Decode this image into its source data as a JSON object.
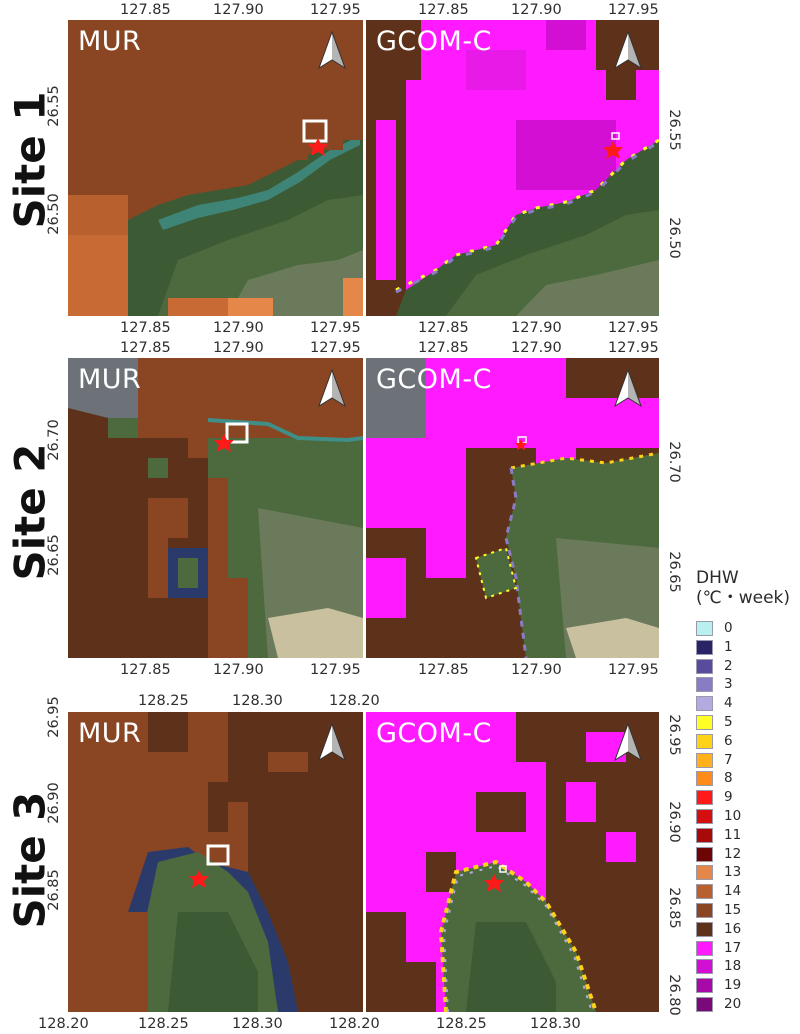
{
  "sites": [
    {
      "label": "Site 1",
      "top_ticks": [
        "127.85",
        "127.90",
        "127.95",
        "127.85",
        "127.90",
        "127.95"
      ],
      "bottom_ticks": [
        "127.85",
        "127.90",
        "127.95",
        "127.85",
        "127.90",
        "127.95"
      ],
      "left_ticks": [
        "26.55",
        "26.50"
      ],
      "right_ticks": [
        "26.55",
        "26.50"
      ],
      "panels": [
        "MUR",
        "GCOM-C"
      ]
    },
    {
      "label": "Site 2",
      "top_ticks": [
        "127.85",
        "127.90",
        "127.95",
        "127.85",
        "127.90",
        "127.95"
      ],
      "bottom_ticks": [
        "127.85",
        "127.90",
        "127.95",
        "127.85",
        "127.90",
        "127.95"
      ],
      "left_ticks": [
        "26.70",
        "26.65"
      ],
      "right_ticks": [
        "26.70",
        "26.65"
      ],
      "panels": [
        "MUR",
        "GCOM-C"
      ]
    },
    {
      "label": "Site 3",
      "top_ticks": [
        "128.25",
        "128.30",
        "128.20"
      ],
      "bottom_ticks": [
        "128.20",
        "128.25",
        "128.30",
        "128.20",
        "128.25",
        "128.30"
      ],
      "left_ticks": [
        "26.95",
        "26.90",
        "26.85"
      ],
      "right_ticks": [
        "26.95",
        "26.90",
        "26.85",
        "26.80"
      ],
      "panels": [
        "MUR",
        "GCOM-C"
      ]
    }
  ],
  "legend": {
    "title_line1": "DHW",
    "title_line2": "(℃・week)",
    "items": [
      {
        "label": "0",
        "color": "#b8f0f0"
      },
      {
        "label": "1",
        "color": "#2a2466"
      },
      {
        "label": "2",
        "color": "#5a4c9c"
      },
      {
        "label": "3",
        "color": "#8a7cc4"
      },
      {
        "label": "4",
        "color": "#b3aae0"
      },
      {
        "label": "5",
        "color": "#ffff26"
      },
      {
        "label": "6",
        "color": "#ffd21a"
      },
      {
        "label": "7",
        "color": "#ffb01a"
      },
      {
        "label": "8",
        "color": "#ff8c1a"
      },
      {
        "label": "9",
        "color": "#ff1a1a"
      },
      {
        "label": "10",
        "color": "#d40f0f"
      },
      {
        "label": "11",
        "color": "#a80a0a"
      },
      {
        "label": "12",
        "color": "#6e0505"
      },
      {
        "label": "13",
        "color": "#e6874a"
      },
      {
        "label": "14",
        "color": "#b8612e"
      },
      {
        "label": "15",
        "color": "#8a4622"
      },
      {
        "label": "16",
        "color": "#5e321a"
      },
      {
        "label": "17",
        "color": "#ff1aff"
      },
      {
        "label": "18",
        "color": "#d20fd2"
      },
      {
        "label": "19",
        "color": "#a80aa8"
      },
      {
        "label": "20",
        "color": "#7a0a7a"
      }
    ]
  },
  "north_arrow_icon": "north-arrow-icon"
}
